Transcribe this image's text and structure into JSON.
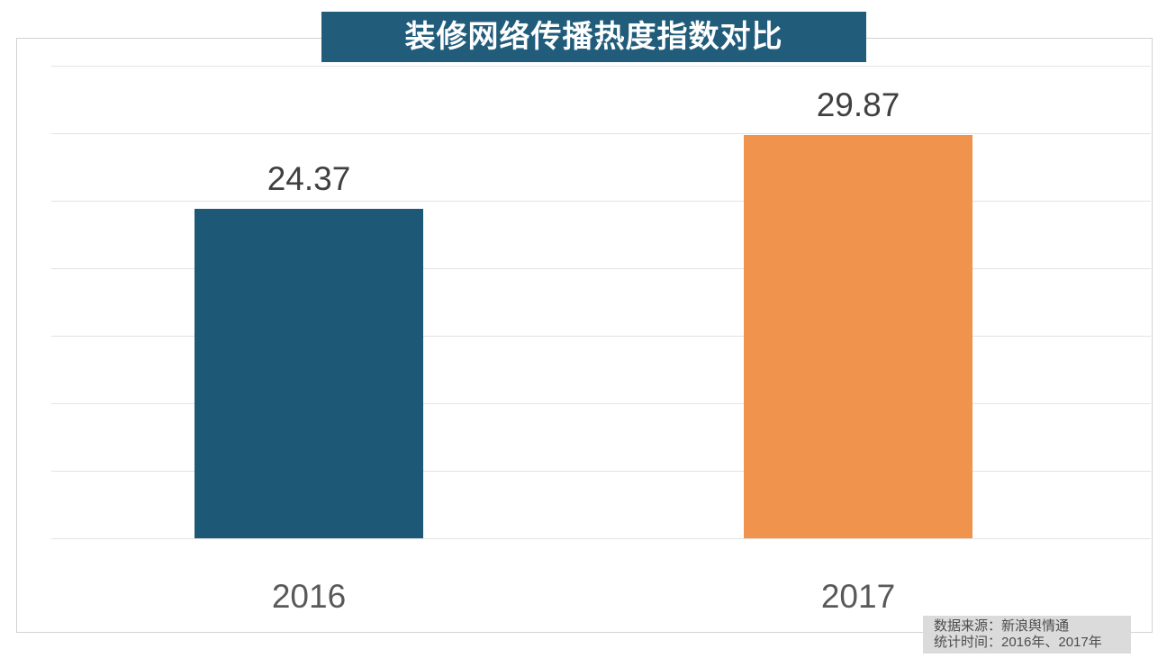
{
  "chart_data": {
    "type": "bar",
    "title": "装修网络传播热度指数对比",
    "categories": [
      "2016",
      "2017"
    ],
    "values": [
      24.37,
      29.87
    ],
    "colors": [
      "#1E5877",
      "#F0934D"
    ],
    "xlabel": "",
    "ylabel": "",
    "ylim": [
      0,
      35
    ],
    "gridline_interval": 5,
    "grid": "horizontal",
    "legend": "none",
    "value_label_color": "#404040",
    "category_label_color": "#595959"
  },
  "title_banner": {
    "background": "#215C7B",
    "text_color": "#FFFFFF"
  },
  "source_note": {
    "line1": "数据来源：新浪舆情通",
    "line2": "统计时间：2016年、2017年",
    "background": "#DBDBDB",
    "text_color": "#4D4D4D"
  }
}
